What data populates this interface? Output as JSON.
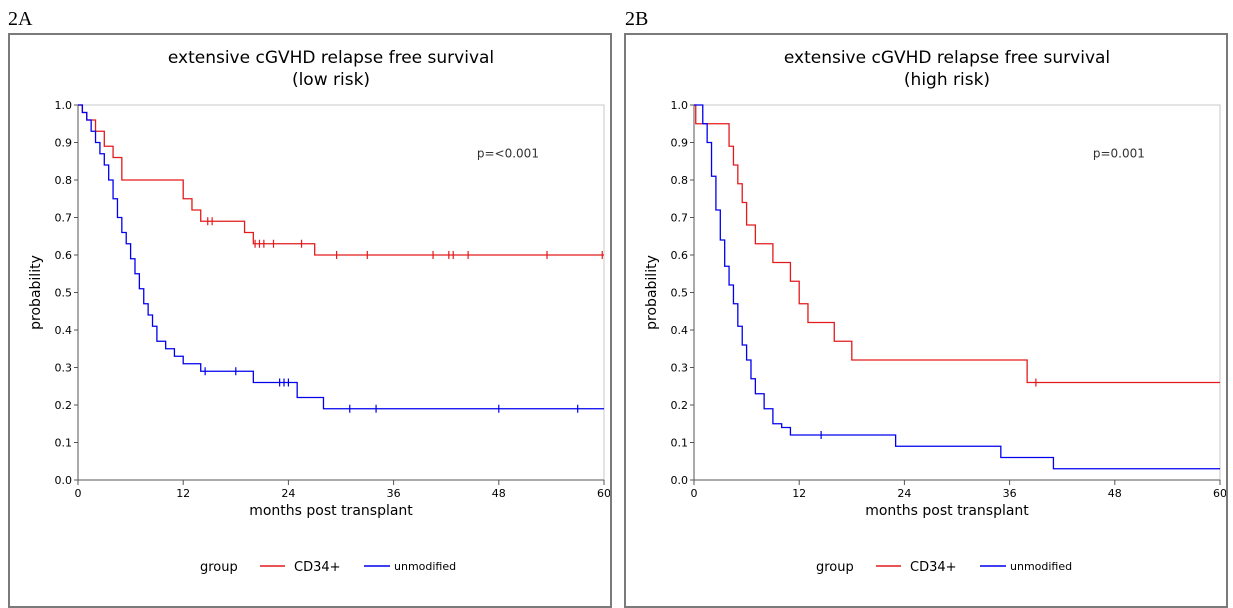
{
  "colors": {
    "cd34": "#e31a1c",
    "unmodified": "#0000ee",
    "frame": "#7a7a7a"
  },
  "chart_data": [
    {
      "type": "line",
      "panel_label": "2A",
      "title": [
        "extensive cGVHD relapse free survival",
        "(low risk)"
      ],
      "xlabel": "months post transplant",
      "ylabel": "probability",
      "xlim": [
        0,
        60
      ],
      "ylim": [
        0,
        1
      ],
      "xticks": [
        0,
        12,
        24,
        36,
        48,
        60
      ],
      "yticks": [
        0.0,
        0.1,
        0.2,
        0.3,
        0.4,
        0.5,
        0.6,
        0.7,
        0.8,
        0.9,
        1.0
      ],
      "annotation": "p=<0.001",
      "legend": {
        "title": "group",
        "placement": "bottom-center"
      },
      "series": [
        {
          "name": "CD34+",
          "color_key": "cd34",
          "x": [
            0,
            0.5,
            1,
            2,
            3,
            4,
            5,
            12,
            13,
            14,
            15,
            19,
            20,
            27,
            60
          ],
          "y": [
            1.0,
            0.98,
            0.96,
            0.93,
            0.89,
            0.86,
            0.8,
            0.75,
            0.72,
            0.69,
            0.69,
            0.66,
            0.63,
            0.6,
            0.6
          ],
          "censored_x": [
            14.8,
            15.3,
            20.2,
            20.7,
            21.2,
            22.3,
            25.5,
            29.5,
            33.0,
            40.5,
            42.3,
            42.8,
            44.5,
            53.5,
            59.8
          ]
        },
        {
          "name": "unmodified",
          "color_key": "unmodified",
          "x": [
            0,
            0.5,
            1,
            1.5,
            2,
            2.5,
            3,
            3.5,
            4,
            4.5,
            5,
            5.5,
            6,
            6.5,
            7,
            7.5,
            8,
            8.5,
            9,
            10,
            11,
            12,
            14,
            20,
            25,
            28,
            60
          ],
          "y": [
            1.0,
            0.98,
            0.96,
            0.93,
            0.9,
            0.87,
            0.84,
            0.8,
            0.75,
            0.7,
            0.66,
            0.63,
            0.59,
            0.55,
            0.51,
            0.47,
            0.44,
            0.41,
            0.37,
            0.35,
            0.33,
            0.31,
            0.29,
            0.26,
            0.22,
            0.19,
            0.19
          ],
          "censored_x": [
            14.5,
            18.0,
            23.0,
            23.5,
            24.0,
            31.0,
            34.0,
            48.0,
            57.0
          ]
        }
      ]
    },
    {
      "type": "line",
      "panel_label": "2B",
      "title": [
        "extensive cGVHD relapse free survival",
        "(high risk)"
      ],
      "xlabel": "months post transplant",
      "ylabel": "probability",
      "xlim": [
        0,
        60
      ],
      "ylim": [
        0,
        1
      ],
      "xticks": [
        0,
        12,
        24,
        36,
        48,
        60
      ],
      "yticks": [
        0.0,
        0.1,
        0.2,
        0.3,
        0.4,
        0.5,
        0.6,
        0.7,
        0.8,
        0.9,
        1.0
      ],
      "annotation": "p=0.001",
      "legend": {
        "title": "group",
        "placement": "bottom-center"
      },
      "series": [
        {
          "name": "CD34+",
          "color_key": "cd34",
          "x": [
            0,
            0.2,
            4,
            4.5,
            5,
            5.5,
            6,
            7,
            9,
            11,
            12,
            13,
            16,
            18,
            38,
            60
          ],
          "y": [
            1.0,
            0.95,
            0.89,
            0.84,
            0.79,
            0.74,
            0.68,
            0.63,
            0.58,
            0.53,
            0.47,
            0.42,
            0.37,
            0.32,
            0.26,
            0.26
          ],
          "censored_x": [
            39.0
          ]
        },
        {
          "name": "unmodified",
          "color_key": "unmodified",
          "x": [
            0,
            1,
            1.5,
            2,
            2.5,
            3,
            3.5,
            4,
            4.5,
            5,
            5.5,
            6,
            6.5,
            7,
            8,
            9,
            10,
            11,
            23,
            35,
            41,
            60
          ],
          "y": [
            1.0,
            0.95,
            0.9,
            0.81,
            0.72,
            0.64,
            0.57,
            0.52,
            0.47,
            0.41,
            0.36,
            0.32,
            0.27,
            0.23,
            0.19,
            0.15,
            0.14,
            0.12,
            0.09,
            0.06,
            0.03,
            0.03
          ],
          "censored_x": [
            14.5
          ]
        }
      ]
    }
  ]
}
